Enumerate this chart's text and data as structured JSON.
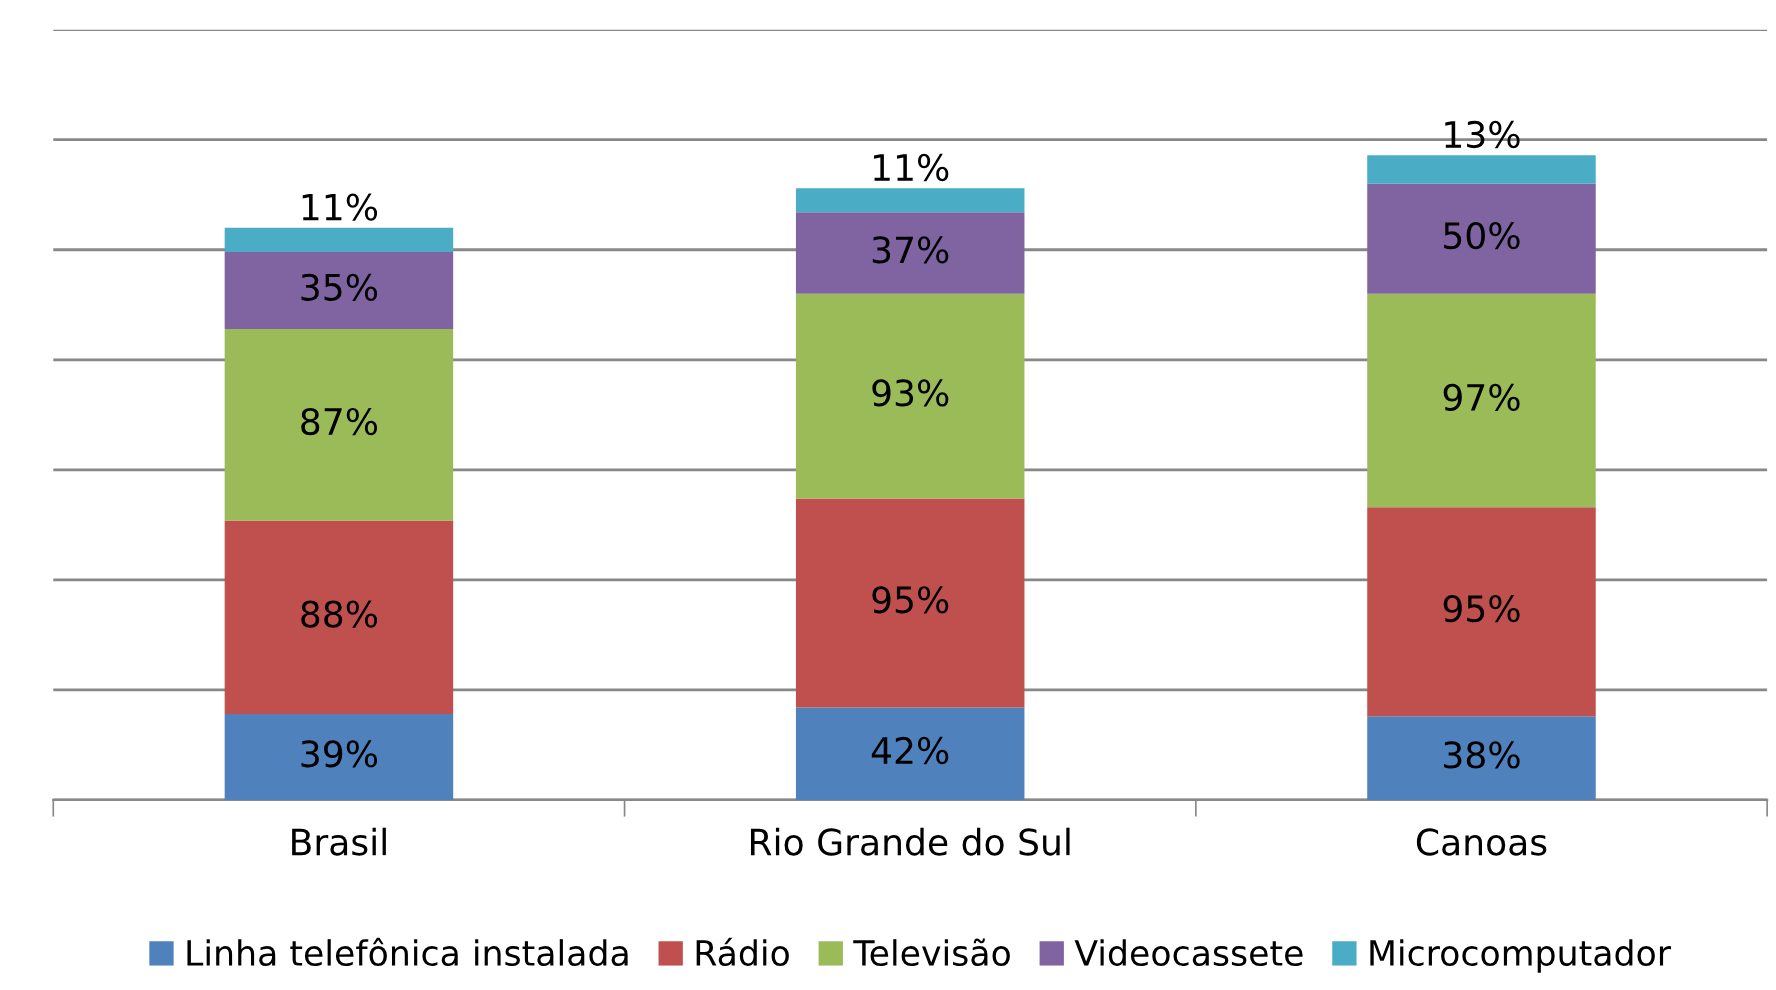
{
  "chart_data": {
    "type": "bar",
    "stacked": true,
    "categories": [
      "Brasil",
      "Rio Grande do Sul",
      "Canoas"
    ],
    "series": [
      {
        "name": "Linha telefônica instalada",
        "color": "#4f81bd",
        "values": [
          39,
          42,
          38
        ],
        "value_labels": [
          "39%",
          "42%",
          "38%"
        ]
      },
      {
        "name": "Rádio",
        "color": "#c0504d",
        "values": [
          88,
          95,
          95
        ],
        "value_labels": [
          "88%",
          "95%",
          "95%"
        ]
      },
      {
        "name": "Televisão",
        "color": "#9bbb59",
        "values": [
          87,
          93,
          97
        ],
        "value_labels": [
          "87%",
          "93%",
          "97%"
        ]
      },
      {
        "name": "Videocassete",
        "color": "#8064a2",
        "values": [
          35,
          37,
          50
        ],
        "value_labels": [
          "35%",
          "37%",
          "50%"
        ]
      },
      {
        "name": "Microcomputador",
        "color": "#4bacc6",
        "values": [
          11,
          11,
          13
        ],
        "value_labels": [
          "11%",
          "11%",
          "13%"
        ]
      }
    ],
    "ylim": [
      0,
      350
    ],
    "yticks": [
      {
        "value": 0,
        "label": null
      },
      {
        "value": 50,
        "label": null
      },
      {
        "value": 100,
        "label": null
      },
      {
        "value": 150,
        "label": null
      },
      {
        "value": 200,
        "label": null
      },
      {
        "value": 250,
        "label": null
      },
      {
        "value": 300,
        "label": null
      },
      {
        "value": 350,
        "label": null
      }
    ],
    "tick_labels": "x",
    "grid": "y",
    "legend": "bottom"
  }
}
